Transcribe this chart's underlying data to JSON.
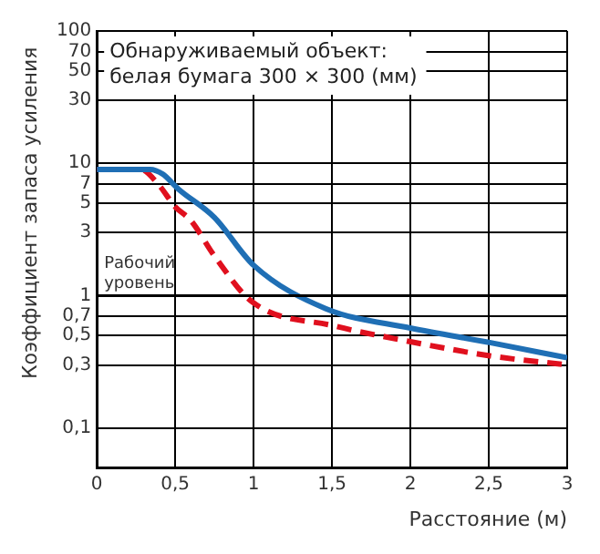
{
  "chart_data": {
    "type": "line",
    "xlabel": "Расстояние (м)",
    "ylabel": "Коэффициент запаса усиления",
    "annotations": [
      "Обнаруживаемый объект:\nбелая бумага 300 × 300 (мм)"
    ],
    "log": "y",
    "grid": true,
    "legend": false,
    "marker": "none",
    "xlim": [
      0,
      3
    ],
    "xticks": [
      0,
      {
        "value": 0.5,
        "label": "0,5"
      },
      1,
      {
        "value": 1.5,
        "label": "1,5"
      },
      2,
      {
        "value": 2.5,
        "label": "2,5"
      },
      3
    ],
    "ylim": [
      0.05,
      100
    ],
    "yticks": [
      {
        "value": 0.1,
        "label": "0,1"
      },
      {
        "value": 0.3,
        "label": "0,3"
      },
      {
        "value": 0.5,
        "label": "0,5"
      },
      {
        "value": 0.7,
        "label": "0,7"
      },
      1,
      3,
      5,
      7,
      10,
      30,
      50,
      70,
      100
    ],
    "ref_lines": [
      {
        "axis": "y",
        "value": 1,
        "label": "Рабочий\nуровень",
        "color": "#000000"
      }
    ],
    "series": [
      {
        "color": "#1f6fb5",
        "line_style": "solid",
        "x": [
          0,
          0.34,
          0.42,
          0.52,
          0.75,
          1.0,
          1.46,
          2.0,
          2.52,
          3.0
        ],
        "values": [
          9,
          9,
          8.3,
          6.4,
          3.9,
          1.7,
          0.8,
          0.57,
          0.44,
          0.34
        ]
      },
      {
        "color": "#e0101e",
        "line_style": "dashed",
        "x": [
          0,
          0.28,
          0.39,
          0.5,
          0.6,
          0.75,
          0.99,
          1.52,
          2.0,
          2.52,
          3.0
        ],
        "values": [
          9,
          9,
          7,
          4.7,
          3.7,
          2.0,
          0.9,
          0.59,
          0.45,
          0.35,
          0.3
        ]
      }
    ]
  }
}
